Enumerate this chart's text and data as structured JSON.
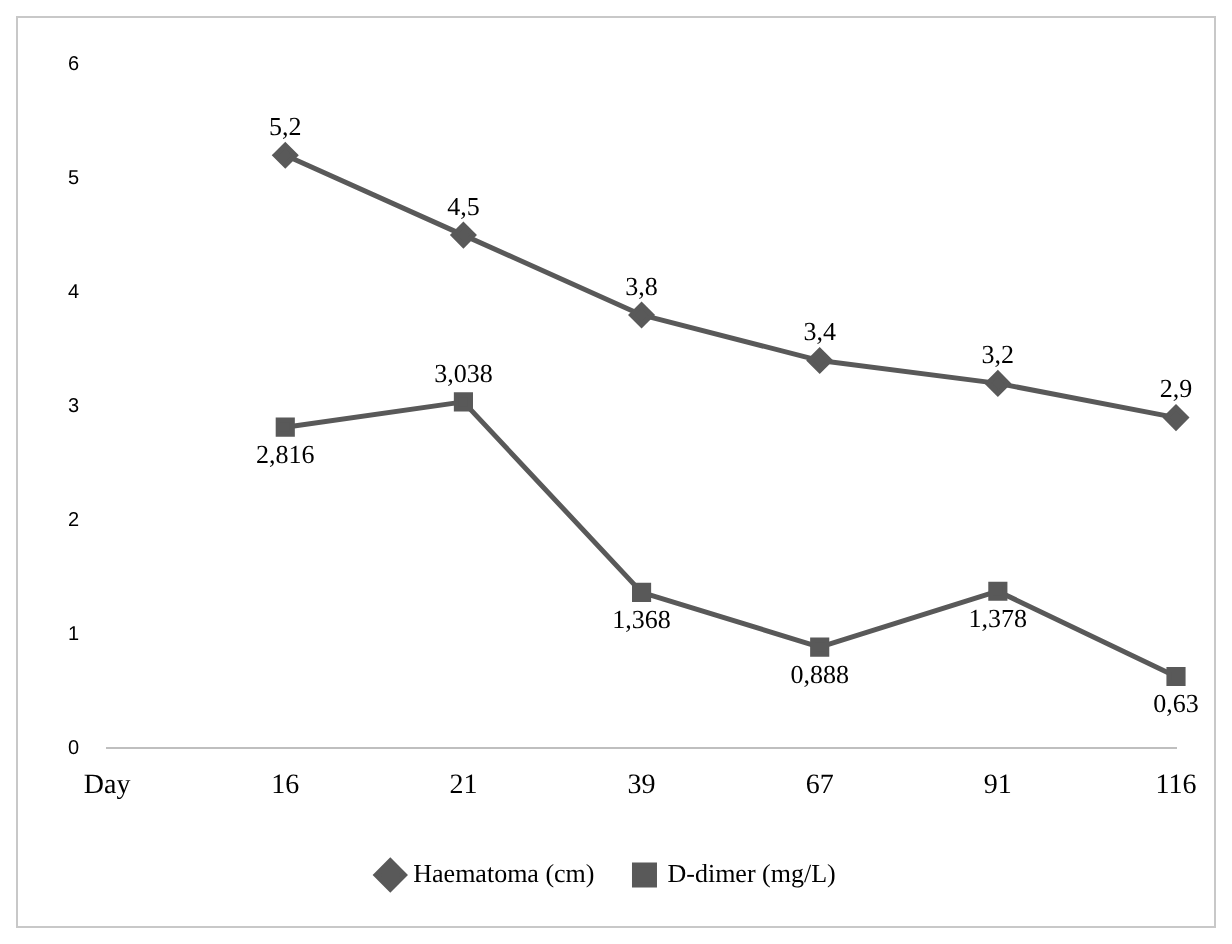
{
  "chart_data": {
    "type": "line",
    "categories": [
      "Day",
      "16",
      "21",
      "39",
      "67",
      "91",
      "116"
    ],
    "series": [
      {
        "name": "Haematoma (cm)",
        "color": "#595959",
        "marker": "diamond",
        "values": [
          null,
          5.2,
          4.5,
          3.8,
          3.4,
          3.2,
          2.9
        ],
        "value_labels": [
          null,
          "5,2",
          "4,5",
          "3,8",
          "3,4",
          "3,2",
          "2,9"
        ]
      },
      {
        "name": "D-dimer (mg/L)",
        "color": "#595959",
        "marker": "square",
        "values": [
          null,
          2.816,
          3.038,
          1.368,
          0.888,
          1.378,
          0.63
        ],
        "value_labels": [
          null,
          "2,816",
          "3,038",
          "1,368",
          "0,888",
          "1,378",
          "0,63"
        ]
      }
    ],
    "ylim": [
      0,
      6
    ],
    "yticks": [
      0,
      1,
      2,
      3,
      4,
      5,
      6
    ],
    "grid": false,
    "legend": "bottom",
    "line_style": "solid"
  }
}
